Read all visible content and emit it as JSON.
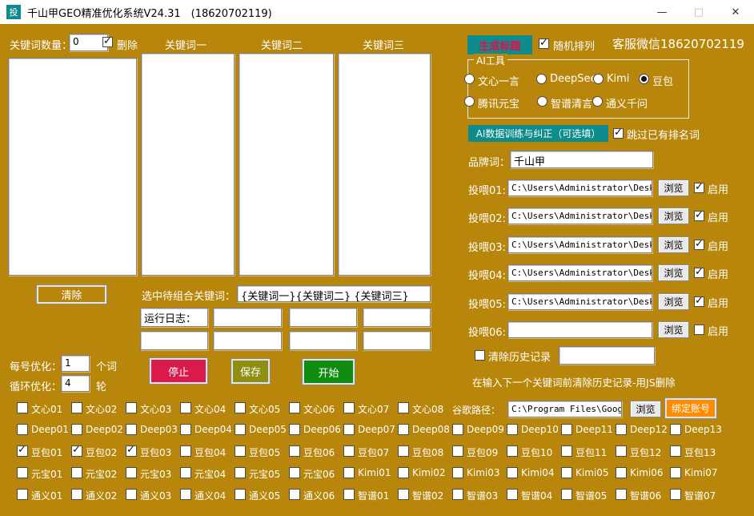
{
  "titlebar": {
    "icon": "投",
    "title": "千山甲GEO精准优化系统V24.31　(18620702119)",
    "minimize": "—",
    "maximize": "□",
    "close": "✕"
  },
  "colors": {
    "background": "#b8860b",
    "teal": "#0e8b8b",
    "stop_red": "#da1a4a",
    "save_olive": "#8e8e12",
    "start_green": "#0f8c0f",
    "bind_orange": "#ff8c00",
    "generate_text_red": "#e0104a"
  },
  "keywords_header": {
    "count_label": "关键词数量：",
    "count_value": "0",
    "delete_label": "删除",
    "delete_checked": true,
    "columns": [
      "关键词一",
      "关键词二",
      "关键词三"
    ]
  },
  "middle": {
    "clear_label": "清除",
    "combine_label": "选中待组合关键词：",
    "combine_value": "{关键词一}{关键词二} {关键词三}",
    "log_label": "运行日志：",
    "per_label": "每号优化：",
    "per_value": "1",
    "per_unit": "个词",
    "loop_label": "循环优化：",
    "loop_value": "4",
    "loop_unit": "轮",
    "stop_label": "停止",
    "save_label": "保存",
    "start_label": "开始"
  },
  "right": {
    "generate_label": "生成标题",
    "random_label": "随机排列",
    "random_checked": true,
    "service_text": "客服微信18620702119",
    "ai_tools": {
      "title": "AI工具",
      "rows": [
        [
          {
            "label": "文心一言",
            "selected": false
          },
          {
            "label": "DeepSeek",
            "selected": false
          },
          {
            "label": "Kimi",
            "selected": false
          },
          {
            "label": "豆包",
            "selected": true
          }
        ],
        [
          {
            "label": "腾讯元宝",
            "selected": false
          },
          {
            "label": "智谱清言",
            "selected": false
          },
          {
            "label": "通义千问",
            "selected": false
          }
        ]
      ]
    },
    "train_label": "AI数据训练与纠正（可选填）",
    "skip_label": "跳过已有排名词",
    "skip_checked": true,
    "brand_label": "品牌词：",
    "brand_value": "千山甲",
    "browse_label": "浏览",
    "enable_label": "启用",
    "feeds": [
      {
        "label": "投喂01:",
        "value": "C:\\Users\\Administrator\\Deskto",
        "enabled": true
      },
      {
        "label": "投喂02:",
        "value": "C:\\Users\\Administrator\\Deskto",
        "enabled": true
      },
      {
        "label": "投喂03:",
        "value": "C:\\Users\\Administrator\\Deskto",
        "enabled": true
      },
      {
        "label": "投喂04:",
        "value": "C:\\Users\\Administrator\\Deskto",
        "enabled": true
      },
      {
        "label": "投喂05:",
        "value": "C:\\Users\\Administrator\\Deskto",
        "enabled": true
      },
      {
        "label": "投喂06:",
        "value": "",
        "enabled": false
      }
    ],
    "clear_history_label": "清除历史记录",
    "clear_history_checked": false,
    "clear_history_value": "",
    "hint": "在输入下一个关键词前清除历史记录-用JS删除"
  },
  "bottom": {
    "google_label": "谷歌路径：",
    "google_value": "C:\\Program Files\\Google\\C",
    "browse_label": "浏览",
    "bind_label": "绑定账号",
    "rows": [
      [
        {
          "label": "文心01",
          "checked": false
        },
        {
          "label": "文心02",
          "checked": false
        },
        {
          "label": "文心03",
          "checked": false
        },
        {
          "label": "文心04",
          "checked": false
        },
        {
          "label": "文心05",
          "checked": false
        },
        {
          "label": "文心06",
          "checked": false
        },
        {
          "label": "文心07",
          "checked": false
        },
        {
          "label": "文心08",
          "checked": false
        }
      ],
      [
        {
          "label": "Deep01",
          "checked": false
        },
        {
          "label": "Deep02",
          "checked": false
        },
        {
          "label": "Deep03",
          "checked": false
        },
        {
          "label": "Deep04",
          "checked": false
        },
        {
          "label": "Deep05",
          "checked": false
        },
        {
          "label": "Deep06",
          "checked": false
        },
        {
          "label": "Deep07",
          "checked": false
        },
        {
          "label": "Deep08",
          "checked": false
        },
        {
          "label": "Deep09",
          "checked": false
        },
        {
          "label": "Deep10",
          "checked": false
        },
        {
          "label": "Deep11",
          "checked": false
        },
        {
          "label": "Deep12",
          "checked": false
        },
        {
          "label": "Deep13",
          "checked": false
        }
      ],
      [
        {
          "label": "豆包01",
          "checked": true
        },
        {
          "label": "豆包02",
          "checked": true
        },
        {
          "label": "豆包03",
          "checked": true
        },
        {
          "label": "豆包04",
          "checked": false
        },
        {
          "label": "豆包05",
          "checked": false
        },
        {
          "label": "豆包06",
          "checked": false
        },
        {
          "label": "豆包07",
          "checked": false
        },
        {
          "label": "豆包08",
          "checked": false
        },
        {
          "label": "豆包09",
          "checked": false
        },
        {
          "label": "豆包10",
          "checked": false
        },
        {
          "label": "豆包11",
          "checked": false
        },
        {
          "label": "豆包12",
          "checked": false
        },
        {
          "label": "豆包13",
          "checked": false
        }
      ],
      [
        {
          "label": "元宝01",
          "checked": false
        },
        {
          "label": "元宝02",
          "checked": false
        },
        {
          "label": "元宝03",
          "checked": false
        },
        {
          "label": "元宝04",
          "checked": false
        },
        {
          "label": "元宝05",
          "checked": false
        },
        {
          "label": "元宝06",
          "checked": false
        },
        {
          "label": "Kimi01",
          "checked": false
        },
        {
          "label": "Kimi02",
          "checked": false
        },
        {
          "label": "Kimi03",
          "checked": false
        },
        {
          "label": "Kimi04",
          "checked": false
        },
        {
          "label": "Kimi05",
          "checked": false
        },
        {
          "label": "Kimi06",
          "checked": false
        },
        {
          "label": "Kimi07",
          "checked": false
        }
      ],
      [
        {
          "label": "通义01",
          "checked": false
        },
        {
          "label": "通义02",
          "checked": false
        },
        {
          "label": "通义03",
          "checked": false
        },
        {
          "label": "通义04",
          "checked": false
        },
        {
          "label": "通义05",
          "checked": false
        },
        {
          "label": "通义06",
          "checked": false
        },
        {
          "label": "智谱01",
          "checked": false
        },
        {
          "label": "智谱02",
          "checked": false
        },
        {
          "label": "智谱03",
          "checked": false
        },
        {
          "label": "智谱04",
          "checked": false
        },
        {
          "label": "智谱05",
          "checked": false
        },
        {
          "label": "智谱06",
          "checked": false
        },
        {
          "label": "智谱07",
          "checked": false
        }
      ]
    ]
  }
}
